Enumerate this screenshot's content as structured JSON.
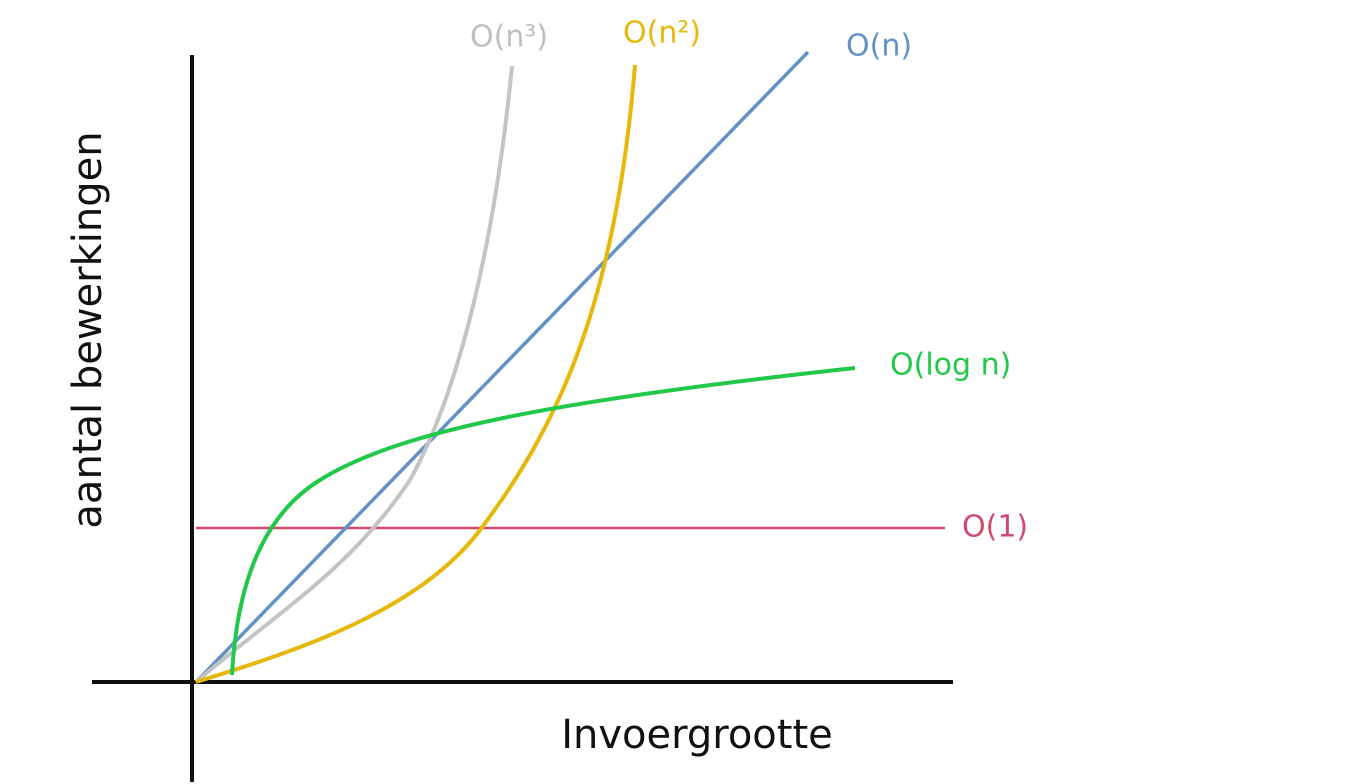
{
  "axes": {
    "x_label": "Invoergrootte",
    "y_label": "aantal bewerkingen"
  },
  "curves": [
    {
      "label": "O(n³)"
    },
    {
      "label": "O(n²)"
    },
    {
      "label": "O(n)"
    },
    {
      "label": "O(log n)"
    },
    {
      "label": "O(1)"
    }
  ]
}
